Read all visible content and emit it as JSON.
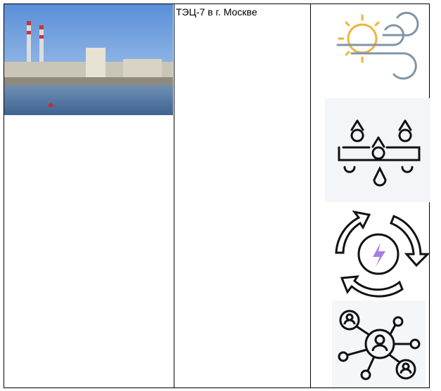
{
  "table": {
    "text_cell": "ТЭЦ-7 в г. Москве"
  }
}
